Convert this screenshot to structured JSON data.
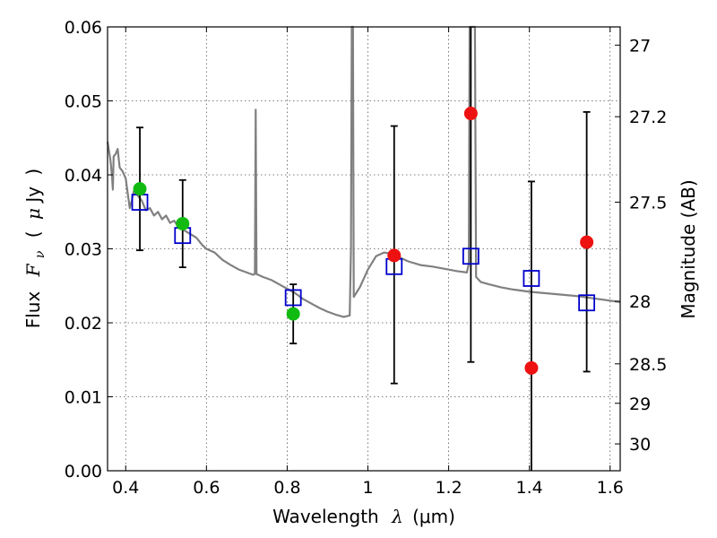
{
  "chart_data": {
    "type": "scatter",
    "xlabel": "Wavelength  λ (μm)",
    "xlabel_parts": {
      "text": "Wavelength",
      "symbol": "λ",
      "unit": "(μm)"
    },
    "ylabel_left": "Flux  F_ν  ( μJy )",
    "ylabel_left_parts": {
      "text": "Flux",
      "symbol": "F",
      "subscript": "ν",
      "unit_prefix": "μ",
      "unit_suffix": "Jy"
    },
    "ylabel_right": "Magnitude (AB)",
    "xlim": [
      0.355,
      1.625
    ],
    "ylim": [
      0.0,
      0.06
    ],
    "grid": true,
    "x_ticks": [
      0.4,
      0.6,
      0.8,
      1.0,
      1.2,
      1.4,
      1.6
    ],
    "x_tick_labels": [
      "0.4",
      "0.6",
      "0.8",
      "1",
      "1.2",
      "1.4",
      "1.6"
    ],
    "y_ticks": [
      0.0,
      0.01,
      0.02,
      0.03,
      0.04,
      0.05,
      0.06
    ],
    "y_tick_labels": [
      "0.00",
      "0.01",
      "0.02",
      "0.03",
      "0.04",
      "0.05",
      "0.06"
    ],
    "right_axis": {
      "ticks": [
        {
          "label": "27",
          "flux": 0.05754
        },
        {
          "label": "27.2",
          "flux": 0.04786
        },
        {
          "label": "27.5",
          "flux": 0.03631
        },
        {
          "label": "28",
          "flux": 0.02291
        },
        {
          "label": "28.5",
          "flux": 0.01445
        },
        {
          "label": "29",
          "flux": 0.00912
        },
        {
          "label": "30",
          "flux": 0.00363
        }
      ]
    },
    "colors": {
      "model": "#808080",
      "model_photometry": "#0000cc",
      "observed_detected": "#11bb11",
      "observed_other": "#ee1111",
      "errorbar": "#000000"
    },
    "series": [
      {
        "kind": "model_spectrum",
        "points": [
          [
            0.355,
            0.0445
          ],
          [
            0.362,
            0.042
          ],
          [
            0.366,
            0.0398
          ],
          [
            0.368,
            0.038
          ],
          [
            0.37,
            0.0425
          ],
          [
            0.375,
            0.0428
          ],
          [
            0.38,
            0.0435
          ],
          [
            0.385,
            0.041
          ],
          [
            0.392,
            0.0405
          ],
          [
            0.4,
            0.0395
          ],
          [
            0.405,
            0.0375
          ],
          [
            0.41,
            0.0355
          ],
          [
            0.415,
            0.0365
          ],
          [
            0.42,
            0.0378
          ],
          [
            0.43,
            0.0372
          ],
          [
            0.44,
            0.0365
          ],
          [
            0.45,
            0.0352
          ],
          [
            0.46,
            0.0355
          ],
          [
            0.47,
            0.0345
          ],
          [
            0.48,
            0.035
          ],
          [
            0.49,
            0.034
          ],
          [
            0.5,
            0.0345
          ],
          [
            0.51,
            0.0335
          ],
          [
            0.52,
            0.0338
          ],
          [
            0.53,
            0.033
          ],
          [
            0.545,
            0.0325
          ],
          [
            0.56,
            0.032
          ],
          [
            0.575,
            0.0315
          ],
          [
            0.59,
            0.0305
          ],
          [
            0.6,
            0.03
          ],
          [
            0.62,
            0.0295
          ],
          [
            0.64,
            0.0285
          ],
          [
            0.66,
            0.0278
          ],
          [
            0.68,
            0.0272
          ],
          [
            0.7,
            0.0268
          ],
          [
            0.715,
            0.0265
          ],
          [
            0.72,
            0.0266
          ],
          [
            0.722,
            0.0488
          ],
          [
            0.724,
            0.0266
          ],
          [
            0.74,
            0.0262
          ],
          [
            0.76,
            0.0258
          ],
          [
            0.78,
            0.0252
          ],
          [
            0.8,
            0.0246
          ],
          [
            0.82,
            0.024
          ],
          [
            0.84,
            0.0232
          ],
          [
            0.86,
            0.0226
          ],
          [
            0.88,
            0.022
          ],
          [
            0.9,
            0.0215
          ],
          [
            0.92,
            0.0211
          ],
          [
            0.94,
            0.0208
          ],
          [
            0.955,
            0.021
          ],
          [
            0.958,
            0.03
          ],
          [
            0.96,
            0.06
          ],
          [
            0.963,
            0.06
          ],
          [
            0.965,
            0.0235
          ],
          [
            0.98,
            0.0248
          ],
          [
            1.0,
            0.0272
          ],
          [
            1.02,
            0.029
          ],
          [
            1.04,
            0.0295
          ],
          [
            1.06,
            0.0293
          ],
          [
            1.08,
            0.0288
          ],
          [
            1.1,
            0.0283
          ],
          [
            1.13,
            0.0278
          ],
          [
            1.16,
            0.0276
          ],
          [
            1.19,
            0.0273
          ],
          [
            1.22,
            0.027
          ],
          [
            1.245,
            0.0268
          ],
          [
            1.25,
            0.028
          ],
          [
            1.252,
            0.06
          ],
          [
            1.265,
            0.06
          ],
          [
            1.268,
            0.0262
          ],
          [
            1.28,
            0.0255
          ],
          [
            1.3,
            0.0252
          ],
          [
            1.33,
            0.0248
          ],
          [
            1.36,
            0.0245
          ],
          [
            1.4,
            0.0242
          ],
          [
            1.44,
            0.024
          ],
          [
            1.48,
            0.0238
          ],
          [
            1.52,
            0.0236
          ],
          [
            1.56,
            0.0233
          ],
          [
            1.6,
            0.023
          ],
          [
            1.625,
            0.0228
          ]
        ]
      },
      {
        "kind": "model_photometry",
        "marker": "open-square",
        "points": [
          {
            "x": 0.435,
            "y": 0.0363
          },
          {
            "x": 0.541,
            "y": 0.0318
          },
          {
            "x": 0.815,
            "y": 0.0234
          },
          {
            "x": 1.065,
            "y": 0.0276
          },
          {
            "x": 1.255,
            "y": 0.029
          },
          {
            "x": 1.405,
            "y": 0.026
          },
          {
            "x": 1.542,
            "y": 0.0227
          }
        ]
      },
      {
        "kind": "observed",
        "marker": "filled-circle",
        "points": [
          {
            "x": 0.435,
            "y": 0.0381,
            "lo": 0.0298,
            "hi": 0.0464,
            "color": "observed_detected"
          },
          {
            "x": 0.541,
            "y": 0.0334,
            "lo": 0.0275,
            "hi": 0.0393,
            "color": "observed_detected"
          },
          {
            "x": 0.815,
            "y": 0.0212,
            "lo": 0.0172,
            "hi": 0.0252,
            "color": "observed_detected"
          },
          {
            "x": 1.065,
            "y": 0.0291,
            "lo": 0.0118,
            "hi": 0.0466,
            "color": "observed_other"
          },
          {
            "x": 1.255,
            "y": 0.0483,
            "lo": 0.0147,
            "hi": 0.06,
            "color": "observed_other"
          },
          {
            "x": 1.405,
            "y": 0.0139,
            "lo": 0.0,
            "hi": 0.0391,
            "color": "observed_other"
          },
          {
            "x": 1.542,
            "y": 0.0309,
            "lo": 0.0134,
            "hi": 0.0485,
            "color": "observed_other"
          }
        ]
      }
    ]
  }
}
